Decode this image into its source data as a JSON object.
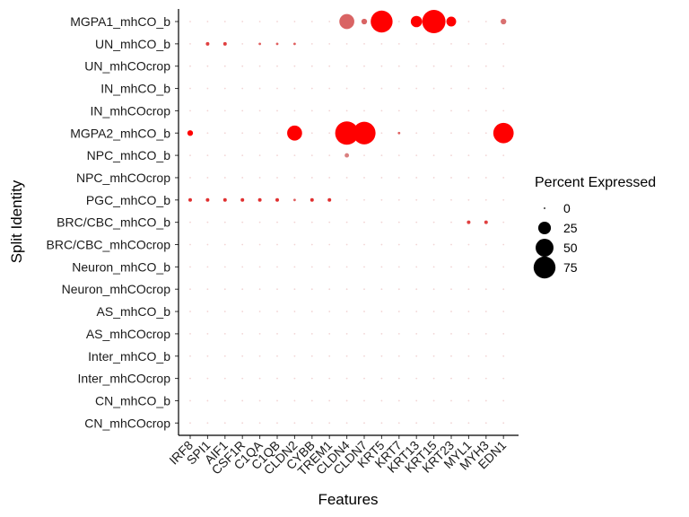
{
  "chart_data": {
    "type": "scatter",
    "subtype": "dotplot",
    "title": "",
    "xlabel": "Features",
    "ylabel": "Split Identity",
    "features": [
      "IRF8",
      "SPI1",
      "AIF1",
      "CSF1R",
      "C1QA",
      "C1QB",
      "CLDN2",
      "CYBB",
      "TREM1",
      "CLDN4",
      "CLDN7",
      "KRT5",
      "KRT7",
      "KRT13",
      "KRT15",
      "KRT23",
      "MYL1",
      "MYH3",
      "EDN1"
    ],
    "identities": [
      "MGPA1_mhCO_b",
      "UN_mhCO_b",
      "UN_mhCOcrop",
      "IN_mhCO_b",
      "IN_mhCOcrop",
      "MGPA2_mhCO_b",
      "NPC_mhCO_b",
      "NPC_mhCOcrop",
      "PGC_mhCO_b",
      "BRC/CBC_mhCO_b",
      "BRC/CBC_mhCOcrop",
      "Neuron_mhCO_b",
      "Neuron_mhCOcrop",
      "AS_mhCO_b",
      "AS_mhCOcrop",
      "Inter_mhCO_b",
      "Inter_mhCOcrop",
      "CN_mhCO_b",
      "CN_mhCOcrop"
    ],
    "percent_expressed": [
      [
        0,
        0,
        0,
        0,
        0,
        0,
        0,
        0,
        0,
        35,
        5,
        75,
        0,
        20,
        85,
        15,
        0,
        0,
        5
      ],
      [
        0,
        2,
        2,
        0,
        1,
        1,
        1,
        0,
        0,
        0,
        0,
        0,
        0,
        0,
        0,
        0,
        0,
        0,
        0
      ],
      [
        0,
        0,
        0,
        0,
        0,
        0,
        0,
        0,
        0,
        0,
        0,
        0,
        0,
        0,
        0,
        0,
        0,
        0,
        0
      ],
      [
        0,
        0,
        0,
        0,
        0,
        0,
        0,
        0,
        0,
        0,
        0,
        0,
        0,
        0,
        0,
        0,
        0,
        0,
        0
      ],
      [
        0,
        0,
        0,
        0,
        0,
        0,
        0,
        0,
        0,
        0,
        0,
        0,
        0,
        0,
        0,
        0,
        0,
        0,
        0
      ],
      [
        5,
        0,
        0,
        0,
        0,
        0,
        35,
        0,
        0,
        85,
        80,
        0,
        1,
        0,
        0,
        0,
        0,
        0,
        65
      ],
      [
        0,
        0,
        0,
        0,
        0,
        0,
        0,
        0,
        0,
        3,
        0,
        0,
        0,
        0,
        0,
        0,
        0,
        0,
        0
      ],
      [
        0,
        0,
        0,
        0,
        0,
        0,
        0,
        0,
        0,
        0,
        0,
        0,
        0,
        0,
        0,
        0,
        0,
        0,
        0
      ],
      [
        2,
        2,
        2,
        2,
        2,
        2,
        1,
        2,
        2,
        0,
        0,
        0,
        0,
        0,
        0,
        0,
        0,
        0,
        0
      ],
      [
        0,
        0,
        0,
        0,
        0,
        0,
        0,
        0,
        0,
        0,
        0,
        0,
        0,
        0,
        0,
        0,
        2,
        2,
        0
      ],
      [
        0,
        0,
        0,
        0,
        0,
        0,
        0,
        0,
        0,
        0,
        0,
        0,
        0,
        0,
        0,
        0,
        0,
        0,
        0
      ],
      [
        0,
        0,
        0,
        0,
        0,
        0,
        0,
        0,
        0,
        0,
        0,
        0,
        0,
        0,
        0,
        0,
        0,
        0,
        0
      ],
      [
        0,
        0,
        0,
        0,
        0,
        0,
        0,
        0,
        0,
        0,
        0,
        0,
        0,
        0,
        0,
        0,
        0,
        0,
        0
      ],
      [
        0,
        0,
        0,
        0,
        0,
        0,
        0,
        0,
        0,
        0,
        0,
        0,
        0,
        0,
        0,
        0,
        0,
        0,
        0
      ],
      [
        0,
        0,
        0,
        0,
        0,
        0,
        0,
        0,
        0,
        0,
        0,
        0,
        0,
        0,
        0,
        0,
        0,
        0,
        0
      ],
      [
        0,
        0,
        0,
        0,
        0,
        0,
        0,
        0,
        0,
        0,
        0,
        0,
        0,
        0,
        0,
        0,
        0,
        0,
        0
      ],
      [
        0,
        0,
        0,
        0,
        0,
        0,
        0,
        0,
        0,
        0,
        0,
        0,
        0,
        0,
        0,
        0,
        0,
        0,
        0
      ],
      [
        0,
        0,
        0,
        0,
        0,
        0,
        0,
        0,
        0,
        0,
        0,
        0,
        0,
        0,
        0,
        0,
        0,
        0,
        0
      ],
      [
        0,
        0,
        0,
        0,
        0,
        0,
        0,
        0,
        0,
        0,
        0,
        0,
        0,
        0,
        0,
        0,
        0,
        0,
        0
      ]
    ],
    "dot_colors": [
      [
        "#f2d4d4",
        "#f2d4d4",
        "#f2d4d4",
        "#f2d4d4",
        "#f2d4d4",
        "#f2d4d4",
        "#f2d4d4",
        "#f2d4d4",
        "#f2d4d4",
        "#d96464",
        "#d96464",
        "#ff0000",
        "#f2d4d4",
        "#ff0000",
        "#ff0000",
        "#ff0000",
        "#f2d4d4",
        "#f2d4d4",
        "#d97070"
      ],
      [
        "#f2d4d4",
        "#e04040",
        "#e04040",
        "#f2d4d4",
        "#e06060",
        "#e06060",
        "#e06060",
        "#f2d4d4",
        "#f2d4d4",
        "#f2d4d4",
        "#f2d4d4",
        "#f2d4d4",
        "#f2d4d4",
        "#f2d4d4",
        "#f2d4d4",
        "#f2d4d4",
        "#f2d4d4",
        "#f2d4d4",
        "#f2d4d4"
      ],
      [
        "#f2d4d4",
        "#f2d4d4",
        "#f2d4d4",
        "#f2d4d4",
        "#f2d4d4",
        "#f2d4d4",
        "#f2d4d4",
        "#f2d4d4",
        "#f2d4d4",
        "#f2d4d4",
        "#f2d4d4",
        "#f2d4d4",
        "#f2d4d4",
        "#f2d4d4",
        "#f2d4d4",
        "#f2d4d4",
        "#f2d4d4",
        "#f2d4d4",
        "#f2d4d4"
      ],
      [
        "#f2d4d4",
        "#f2d4d4",
        "#f2d4d4",
        "#f2d4d4",
        "#f2d4d4",
        "#f2d4d4",
        "#f2d4d4",
        "#f2d4d4",
        "#f2d4d4",
        "#f2d4d4",
        "#f2d4d4",
        "#f2d4d4",
        "#f2d4d4",
        "#f2d4d4",
        "#f2d4d4",
        "#f2d4d4",
        "#f2d4d4",
        "#f2d4d4",
        "#f2d4d4"
      ],
      [
        "#f2d4d4",
        "#f2d4d4",
        "#f2d4d4",
        "#f2d4d4",
        "#f2d4d4",
        "#f2d4d4",
        "#f2d4d4",
        "#f2d4d4",
        "#f2d4d4",
        "#f2d4d4",
        "#f2d4d4",
        "#f2d4d4",
        "#f2d4d4",
        "#f2d4d4",
        "#f2d4d4",
        "#f2d4d4",
        "#f2d4d4",
        "#f2d4d4",
        "#f2d4d4"
      ],
      [
        "#ff0000",
        "#f2d4d4",
        "#f2d4d4",
        "#f2d4d4",
        "#f2d4d4",
        "#f2d4d4",
        "#ff0000",
        "#f2d4d4",
        "#f2d4d4",
        "#ff0000",
        "#ff0000",
        "#f2d4d4",
        "#e06060",
        "#f2d4d4",
        "#f2d4d4",
        "#f2d4d4",
        "#f2d4d4",
        "#f2d4d4",
        "#ff0000"
      ],
      [
        "#f2d4d4",
        "#f2d4d4",
        "#f2d4d4",
        "#f2d4d4",
        "#f2d4d4",
        "#f2d4d4",
        "#f2d4d4",
        "#f2d4d4",
        "#f2d4d4",
        "#d98080",
        "#f2d4d4",
        "#f2d4d4",
        "#f2d4d4",
        "#f2d4d4",
        "#f2d4d4",
        "#f2d4d4",
        "#f2d4d4",
        "#f2d4d4",
        "#f2d4d4"
      ],
      [
        "#f2d4d4",
        "#f2d4d4",
        "#f2d4d4",
        "#f2d4d4",
        "#f2d4d4",
        "#f2d4d4",
        "#f2d4d4",
        "#f2d4d4",
        "#f2d4d4",
        "#f2d4d4",
        "#f2d4d4",
        "#f2d4d4",
        "#f2d4d4",
        "#f2d4d4",
        "#f2d4d4",
        "#f2d4d4",
        "#f2d4d4",
        "#f2d4d4",
        "#f2d4d4"
      ],
      [
        "#e03030",
        "#e03030",
        "#e03030",
        "#e03030",
        "#e03030",
        "#e03030",
        "#e06060",
        "#e03030",
        "#e03030",
        "#f2d4d4",
        "#f2d4d4",
        "#f2d4d4",
        "#f2d4d4",
        "#f2d4d4",
        "#f2d4d4",
        "#f2d4d4",
        "#f2d4d4",
        "#f2d4d4",
        "#f2d4d4"
      ],
      [
        "#f2d4d4",
        "#f2d4d4",
        "#f2d4d4",
        "#f2d4d4",
        "#f2d4d4",
        "#f2d4d4",
        "#f2d4d4",
        "#f2d4d4",
        "#f2d4d4",
        "#f2d4d4",
        "#f2d4d4",
        "#f2d4d4",
        "#f2d4d4",
        "#f2d4d4",
        "#f2d4d4",
        "#f2d4d4",
        "#e04040",
        "#e04040",
        "#f2d4d4"
      ],
      [
        "#f2d4d4",
        "#f2d4d4",
        "#f2d4d4",
        "#f2d4d4",
        "#f2d4d4",
        "#f2d4d4",
        "#f2d4d4",
        "#f2d4d4",
        "#f2d4d4",
        "#f2d4d4",
        "#f2d4d4",
        "#f2d4d4",
        "#f2d4d4",
        "#f2d4d4",
        "#f2d4d4",
        "#f2d4d4",
        "#f2d4d4",
        "#f2d4d4",
        "#f2d4d4"
      ],
      [
        "#f2d4d4",
        "#f2d4d4",
        "#f2d4d4",
        "#f2d4d4",
        "#f2d4d4",
        "#f2d4d4",
        "#f2d4d4",
        "#f2d4d4",
        "#f2d4d4",
        "#f2d4d4",
        "#f2d4d4",
        "#f2d4d4",
        "#f2d4d4",
        "#f2d4d4",
        "#f2d4d4",
        "#f2d4d4",
        "#f2d4d4",
        "#f2d4d4",
        "#f2d4d4"
      ],
      [
        "#f2d4d4",
        "#f2d4d4",
        "#f2d4d4",
        "#f2d4d4",
        "#f2d4d4",
        "#f2d4d4",
        "#f2d4d4",
        "#f2d4d4",
        "#f2d4d4",
        "#f2d4d4",
        "#f2d4d4",
        "#f2d4d4",
        "#f2d4d4",
        "#f2d4d4",
        "#f2d4d4",
        "#f2d4d4",
        "#f2d4d4",
        "#f2d4d4",
        "#f2d4d4"
      ],
      [
        "#f2d4d4",
        "#f2d4d4",
        "#f2d4d4",
        "#f2d4d4",
        "#f2d4d4",
        "#f2d4d4",
        "#f2d4d4",
        "#f2d4d4",
        "#f2d4d4",
        "#f2d4d4",
        "#f2d4d4",
        "#f2d4d4",
        "#f2d4d4",
        "#f2d4d4",
        "#f2d4d4",
        "#f2d4d4",
        "#f2d4d4",
        "#f2d4d4",
        "#f2d4d4"
      ],
      [
        "#f2d4d4",
        "#f2d4d4",
        "#f2d4d4",
        "#f2d4d4",
        "#f2d4d4",
        "#f2d4d4",
        "#f2d4d4",
        "#f2d4d4",
        "#f2d4d4",
        "#f2d4d4",
        "#f2d4d4",
        "#f2d4d4",
        "#f2d4d4",
        "#f2d4d4",
        "#f2d4d4",
        "#f2d4d4",
        "#f2d4d4",
        "#f2d4d4",
        "#f2d4d4"
      ],
      [
        "#f2d4d4",
        "#f2d4d4",
        "#f2d4d4",
        "#f2d4d4",
        "#f2d4d4",
        "#f2d4d4",
        "#f2d4d4",
        "#f2d4d4",
        "#f2d4d4",
        "#f2d4d4",
        "#f2d4d4",
        "#f2d4d4",
        "#f2d4d4",
        "#f2d4d4",
        "#f2d4d4",
        "#f2d4d4",
        "#f2d4d4",
        "#f2d4d4",
        "#f2d4d4"
      ],
      [
        "#f2d4d4",
        "#f2d4d4",
        "#f2d4d4",
        "#f2d4d4",
        "#f2d4d4",
        "#f2d4d4",
        "#f2d4d4",
        "#f2d4d4",
        "#f2d4d4",
        "#f2d4d4",
        "#f2d4d4",
        "#f2d4d4",
        "#f2d4d4",
        "#f2d4d4",
        "#f2d4d4",
        "#f2d4d4",
        "#f2d4d4",
        "#f2d4d4",
        "#f2d4d4"
      ],
      [
        "#f2d4d4",
        "#f2d4d4",
        "#f2d4d4",
        "#f2d4d4",
        "#f2d4d4",
        "#f2d4d4",
        "#f2d4d4",
        "#f2d4d4",
        "#f2d4d4",
        "#f2d4d4",
        "#f2d4d4",
        "#f2d4d4",
        "#f2d4d4",
        "#f2d4d4",
        "#f2d4d4",
        "#f2d4d4",
        "#f2d4d4",
        "#f2d4d4",
        "#f2d4d4"
      ],
      [
        "#f2d4d4",
        "#f2d4d4",
        "#f2d4d4",
        "#f2d4d4",
        "#f2d4d4",
        "#f2d4d4",
        "#f2d4d4",
        "#f2d4d4",
        "#f2d4d4",
        "#f2d4d4",
        "#f2d4d4",
        "#f2d4d4",
        "#f2d4d4",
        "#f2d4d4",
        "#f2d4d4",
        "#f2d4d4",
        "#f2d4d4",
        "#f2d4d4",
        "#f2d4d4"
      ]
    ],
    "legend": {
      "title": "Percent Expressed",
      "values": [
        0,
        25,
        50,
        75
      ],
      "labels": [
        "0",
        "25",
        "50",
        "75"
      ],
      "position": "right"
    },
    "size_range_percent": [
      0,
      85
    ],
    "grid": false
  }
}
